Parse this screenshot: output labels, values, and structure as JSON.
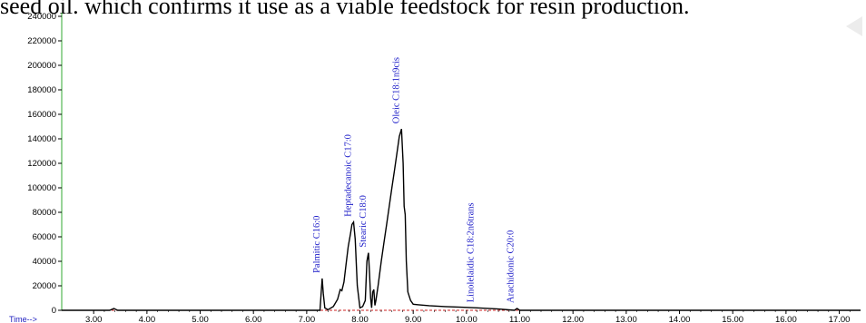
{
  "caption": "seed oil. which confirms it use as a viable feedstock for resin production.",
  "colors": {
    "trace": "#000000",
    "y_axis": "#33aa33",
    "x_axis": "#cc2222",
    "peak_labels": "#1c1cc8",
    "time_label": "#2020c0"
  },
  "chart_data": {
    "type": "line",
    "title": "",
    "xlabel": "Time-->",
    "ylabel": "",
    "xlim": [
      2.4,
      17.4
    ],
    "ylim": [
      0,
      240000
    ],
    "grid": false,
    "legend": "none",
    "x_ticks": [
      "3.00",
      "4.00",
      "5.00",
      "6.00",
      "7.00",
      "8.00",
      "9.00",
      "10.00",
      "11.00",
      "12.00",
      "13.00",
      "14.00",
      "15.00",
      "16.00",
      "17.00"
    ],
    "y_ticks": [
      "0",
      "20000",
      "40000",
      "60000",
      "80000",
      "100000",
      "120000",
      "140000",
      "160000",
      "180000",
      "200000",
      "220000",
      "240000"
    ],
    "series": [
      {
        "x": [
          2.4,
          3.3,
          3.38,
          3.45,
          3.55,
          5.0,
          6.5,
          7.25,
          7.29,
          7.31,
          7.34,
          7.4,
          7.5,
          7.58,
          7.63,
          7.66,
          7.7,
          7.74,
          7.78,
          7.82,
          7.85,
          7.88,
          7.91,
          7.95,
          8.0,
          8.05,
          8.1,
          8.13,
          8.16,
          8.18,
          8.2,
          8.22,
          8.24,
          8.26,
          8.28,
          8.3,
          8.34,
          8.4,
          8.45,
          8.5,
          8.55,
          8.6,
          8.65,
          8.7,
          8.74,
          8.78,
          8.81,
          8.83,
          8.85,
          8.87,
          8.9,
          8.95,
          9.0,
          9.1,
          9.3,
          9.6,
          9.9,
          10.2,
          10.6,
          10.9,
          10.95,
          11.0,
          11.4,
          12.0,
          13.0,
          14.0,
          15.0,
          16.0,
          17.0,
          17.4
        ],
        "y": [
          0,
          0,
          1500,
          0,
          0,
          0,
          0,
          0,
          26000,
          14000,
          2000,
          500,
          3000,
          9000,
          17000,
          16000,
          23000,
          38000,
          52000,
          62000,
          70000,
          72000,
          58000,
          20000,
          2000,
          3000,
          8000,
          40000,
          47000,
          30000,
          10000,
          2000,
          15000,
          17000,
          4000,
          8000,
          20000,
          40000,
          55000,
          70000,
          85000,
          100000,
          115000,
          130000,
          142000,
          148000,
          120000,
          85000,
          78000,
          40000,
          15000,
          8000,
          5000,
          4500,
          3800,
          3000,
          2500,
          2000,
          1000,
          0,
          1500,
          0,
          0,
          0,
          0,
          0,
          0,
          0,
          0,
          0
        ]
      }
    ],
    "annotations": [
      {
        "label": "Palmitic C16:0",
        "x": 7.29,
        "y": 26000
      },
      {
        "label": "Heptadecanoic C17:0",
        "x": 7.88,
        "y": 72000
      },
      {
        "label": "Stearic C18:0",
        "x": 8.16,
        "y": 47000
      },
      {
        "label": "Oleic C18:1n9cis",
        "x": 8.78,
        "y": 148000
      },
      {
        "label": "Linolelaidic C18:2n6trans",
        "x": 10.18,
        "y": 2000
      },
      {
        "label": "Arachidonic C20:0",
        "x": 10.93,
        "y": 1500
      }
    ]
  }
}
